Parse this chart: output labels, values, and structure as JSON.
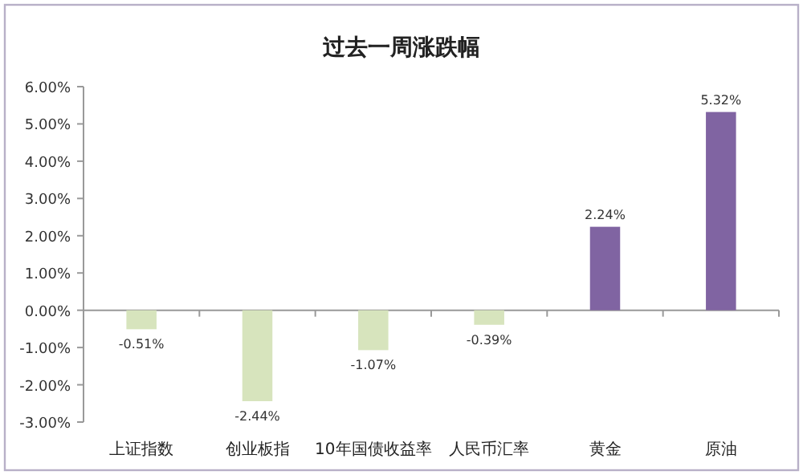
{
  "chart_data": {
    "type": "bar",
    "title": "过去一周涨跌幅",
    "categories": [
      "上证指数",
      "创业板指",
      "10年国债收益率",
      "人民币汇率",
      "黄金",
      "原油"
    ],
    "values": [
      -0.51,
      -2.44,
      -1.07,
      -0.39,
      2.24,
      5.32
    ],
    "colors": [
      "#d7e4bd",
      "#d7e4bd",
      "#d7e4bd",
      "#d7e4bd",
      "#8064a2",
      "#8064a2"
    ],
    "value_labels": [
      "-0.51%",
      "-2.44%",
      "-1.07%",
      "-0.39%",
      "2.24%",
      "5.32%"
    ],
    "ylim": [
      -3,
      6
    ],
    "yticks": [
      {
        "value": -3,
        "label": "-3.00%"
      },
      {
        "value": -2,
        "label": "-2.00%"
      },
      {
        "value": -1,
        "label": "-1.00%"
      },
      {
        "value": 0,
        "label": "0.00%"
      },
      {
        "value": 1,
        "label": "1.00%"
      },
      {
        "value": 2,
        "label": "2.00%"
      },
      {
        "value": 3,
        "label": "3.00%"
      },
      {
        "value": 4,
        "label": "4.00%"
      },
      {
        "value": 5,
        "label": "5.00%"
      },
      {
        "value": 6,
        "label": "6.00%"
      }
    ]
  }
}
